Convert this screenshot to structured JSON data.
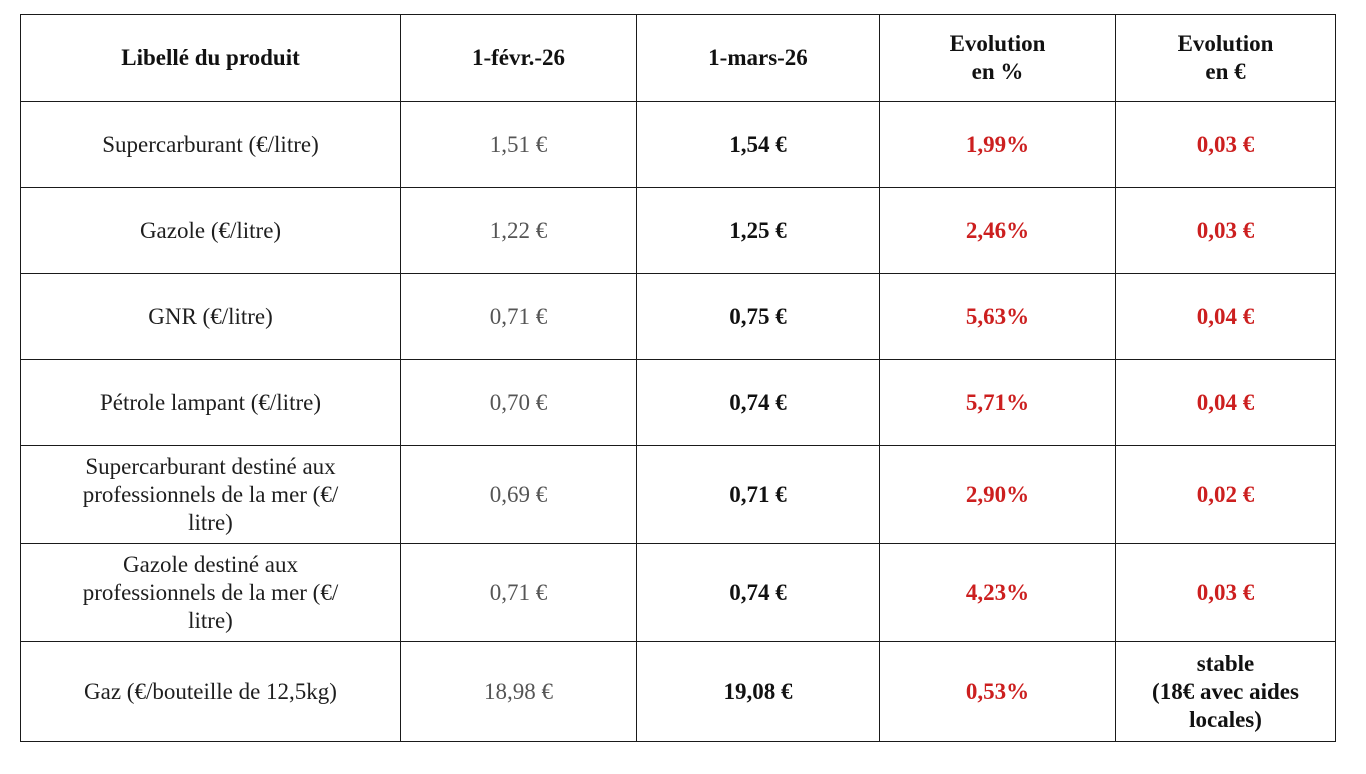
{
  "colors": {
    "evolution_red": "#cc1f1f",
    "border": "#1a1a1a",
    "february_text": "#555555"
  },
  "headers": {
    "product": "Libellé du produit",
    "feb": "1-févr.-26",
    "mar": "1-mars-26",
    "evolution_pct": "Evolution\nen %",
    "evolution_eur": "Evolution\nen €"
  },
  "rows": [
    {
      "product": "Supercarburant  (€/litre)",
      "feb": "1,51 €",
      "mar": "1,54 €",
      "evolution_pct": "1,99%",
      "evolution_eur": "0,03 €"
    },
    {
      "product": "Gazole  (€/litre)",
      "feb": "1,22 €",
      "mar": "1,25 €",
      "evolution_pct": "2,46%",
      "evolution_eur": "0,03 €"
    },
    {
      "product": "GNR (€/litre)",
      "feb": "0,71 €",
      "mar": "0,75 €",
      "evolution_pct": "5,63%",
      "evolution_eur": "0,04 €"
    },
    {
      "product": "Pétrole lampant (€/litre)",
      "feb": "0,70 €",
      "mar": "0,74 €",
      "evolution_pct": "5,71%",
      "evolution_eur": "0,04 €"
    },
    {
      "product": "Supercarburant destiné aux\nprofessionnels de la mer   (€/\nlitre)",
      "feb": "0,69 €",
      "mar": "0,71 €",
      "evolution_pct": "2,90%",
      "evolution_eur": "0,02 €"
    },
    {
      "product": "Gazole destiné aux\nprofessionnels de la mer   (€/\nlitre)",
      "feb": "0,71 €",
      "mar": "0,74 €",
      "evolution_pct": "4,23%",
      "evolution_eur": "0,03 €"
    },
    {
      "product": "Gaz (€/bouteille de 12,5kg)",
      "feb": "18,98 €",
      "mar": "19,08 €",
      "evolution_pct": "0,53%",
      "evolution_eur": "stable\n(18€ avec aides\nlocales)"
    }
  ]
}
